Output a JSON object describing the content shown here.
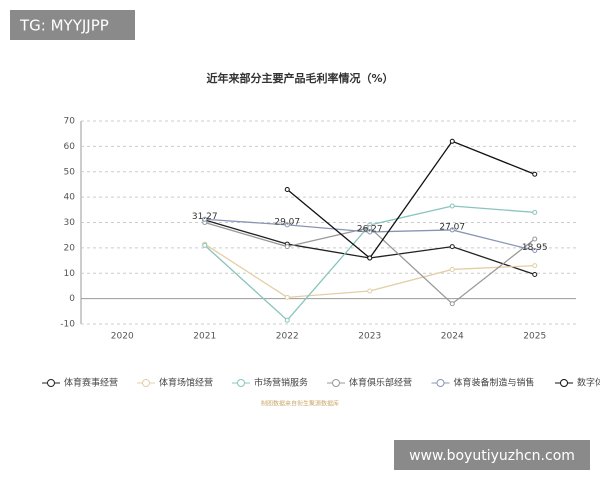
{
  "watermark": "TG: MYYJJPP",
  "site": "www.boyutiyuzhcn.com",
  "chart_data": {
    "type": "line",
    "title": "近年来部分主要产品毛利率情况（%）",
    "source": "制图数据来自衔生聚源数据库",
    "categories": [
      "2020",
      "2021",
      "2022",
      "2023",
      "2024",
      "2025"
    ],
    "ylim": [
      -10,
      70
    ],
    "yticks": [
      -10,
      0,
      10,
      20,
      30,
      40,
      50,
      60,
      70
    ],
    "grid": true,
    "series": [
      {
        "name": "体育赛事经营",
        "color": "#222222",
        "values": [
          null,
          31,
          21.5,
          16,
          20.5,
          9.5
        ]
      },
      {
        "name": "体育场馆经营",
        "color": "#e3cfa6",
        "values": [
          null,
          21.5,
          0.5,
          3,
          11.5,
          13
        ]
      },
      {
        "name": "市场营销服务",
        "color": "#88c4bd",
        "values": [
          null,
          21,
          -8.5,
          29,
          36.5,
          34
        ]
      },
      {
        "name": "体育俱乐部经营",
        "color": "#999999",
        "values": [
          null,
          30,
          20.5,
          28,
          -2,
          23.5
        ]
      },
      {
        "name": "体育装备制造与销售",
        "color": "#8796b5",
        "values": [
          null,
          31.27,
          29.07,
          26.27,
          27.07,
          18.95
        ],
        "show_values": true
      },
      {
        "name": "数字体育",
        "color": "#111111",
        "values": [
          null,
          null,
          43,
          16,
          62,
          49
        ]
      }
    ]
  }
}
